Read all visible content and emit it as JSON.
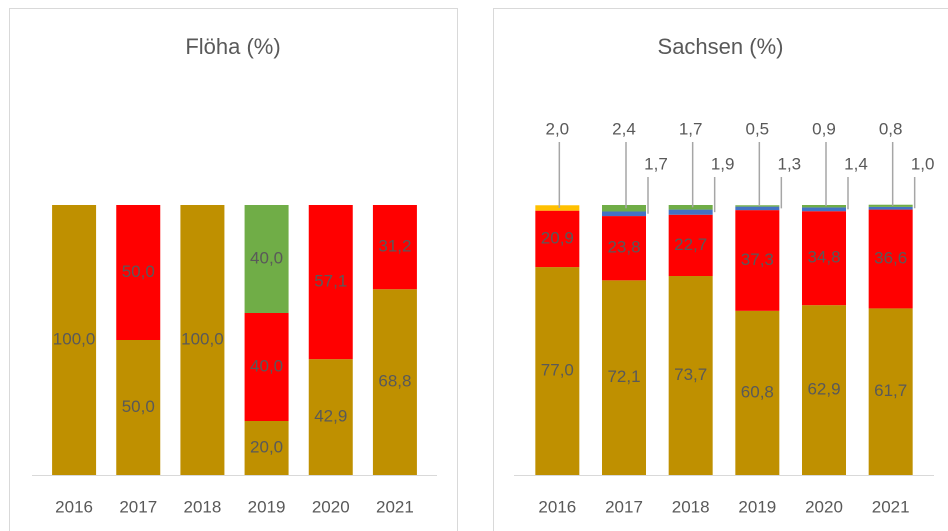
{
  "chart_data": [
    {
      "type": "bar",
      "stacked": true,
      "title": "Flöha (%)",
      "categories": [
        "2016",
        "2017",
        "2018",
        "2019",
        "2020",
        "2021"
      ],
      "ylim": [
        0,
        100
      ],
      "series": [
        {
          "color": "#bf9000",
          "values": [
            100.0,
            50.0,
            100.0,
            20.0,
            42.9,
            68.8
          ],
          "value_labels": [
            "100,0",
            "50,0",
            "100,0",
            "20,0",
            "42,9",
            "68,8"
          ]
        },
        {
          "color": "#ff0000",
          "values": [
            null,
            50.0,
            null,
            40.0,
            57.1,
            31.2
          ],
          "value_labels": [
            null,
            "50,0",
            null,
            "40,0",
            "57,1",
            "31,2"
          ]
        },
        {
          "color": "#70ad47",
          "values": [
            null,
            null,
            null,
            40.0,
            null,
            null
          ],
          "value_labels": [
            null,
            null,
            null,
            "40,0",
            null,
            null
          ]
        }
      ]
    },
    {
      "type": "bar",
      "stacked": true,
      "title": "Sachsen (%)",
      "categories": [
        "2016",
        "2017",
        "2018",
        "2019",
        "2020",
        "2021"
      ],
      "ylim": [
        0,
        100
      ],
      "series": [
        {
          "color": "#bf9000",
          "values": [
            77.0,
            72.1,
            73.7,
            60.8,
            62.9,
            61.7
          ],
          "value_labels": [
            "77,0",
            "72,1",
            "73,7",
            "60,8",
            "62,9",
            "61,7"
          ]
        },
        {
          "color": "#ff0000",
          "values": [
            20.9,
            23.8,
            22.7,
            37.3,
            34.8,
            36.6
          ],
          "value_labels": [
            "20,9",
            "23,8",
            "22,7",
            "37,3",
            "34,8",
            "36,6"
          ]
        },
        {
          "color": "#4472c4",
          "values": [
            null,
            1.7,
            1.9,
            1.3,
            1.4,
            1.0
          ],
          "value_labels": [
            null,
            "1,7",
            "1,9",
            "1,3",
            "1,4",
            "1,0"
          ]
        },
        {
          "color": "#70ad47",
          "values": [
            null,
            2.4,
            1.7,
            0.5,
            0.9,
            0.8
          ],
          "value_labels": [
            null,
            "2,4",
            "1,7",
            "0,5",
            "0,9",
            "0,8"
          ]
        },
        {
          "color": "#ffc000",
          "values": [
            2.0,
            null,
            null,
            null,
            null,
            null
          ],
          "value_labels": [
            "2,0",
            null,
            null,
            null,
            null,
            null
          ]
        }
      ]
    }
  ]
}
